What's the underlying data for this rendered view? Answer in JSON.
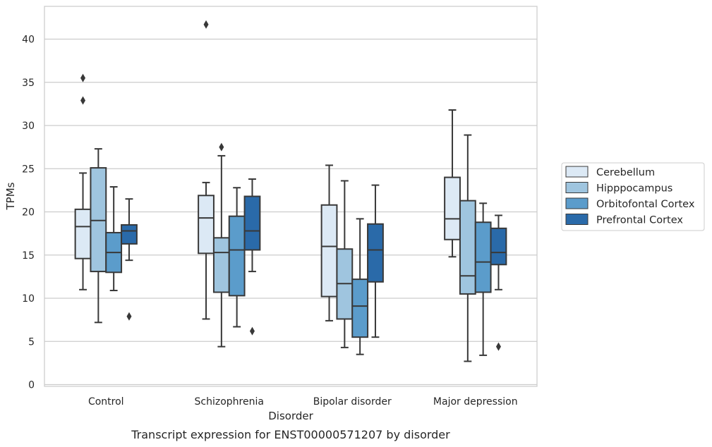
{
  "chart_data": {
    "type": "box",
    "xlabel": "Disorder",
    "ylabel": "TPMs",
    "caption": "Transcript expression for ENST00000571207 by disorder",
    "categories": [
      "Control",
      "Schizophrenia",
      "Bipolar disorder",
      "Major depression"
    ],
    "ylim": [
      -0.2,
      43.8
    ],
    "yticks": [
      0,
      5,
      10,
      15,
      20,
      25,
      30,
      35,
      40
    ],
    "grid": "horizontal",
    "legend_position": "right",
    "series": [
      {
        "name": "Cerebellum",
        "color": "#dce9f5",
        "boxes": [
          {
            "min": 11.0,
            "q1": 14.6,
            "median": 18.3,
            "q3": 20.3,
            "max": 24.5,
            "outliers": [
              32.9,
              35.5
            ]
          },
          {
            "min": 7.6,
            "q1": 15.2,
            "median": 19.3,
            "q3": 21.9,
            "max": 23.4,
            "outliers": [
              41.7
            ]
          },
          {
            "min": 7.4,
            "q1": 10.2,
            "median": 16.0,
            "q3": 20.8,
            "max": 25.4,
            "outliers": []
          },
          {
            "min": 14.8,
            "q1": 16.8,
            "median": 19.2,
            "q3": 24.0,
            "max": 31.8,
            "outliers": []
          }
        ]
      },
      {
        "name": "Hipppocampus",
        "color": "#9fc5df",
        "boxes": [
          {
            "min": 7.2,
            "q1": 13.1,
            "median": 19.0,
            "q3": 25.1,
            "max": 27.3,
            "outliers": []
          },
          {
            "min": 4.4,
            "q1": 10.7,
            "median": 15.3,
            "q3": 17.0,
            "max": 26.5,
            "outliers": [
              27.5
            ]
          },
          {
            "min": 4.3,
            "q1": 7.6,
            "median": 11.7,
            "q3": 15.7,
            "max": 23.6,
            "outliers": []
          },
          {
            "min": 2.7,
            "q1": 10.5,
            "median": 12.6,
            "q3": 21.3,
            "max": 28.9,
            "outliers": []
          }
        ]
      },
      {
        "name": "Orbitofontal Cortex",
        "color": "#5b9ccb",
        "boxes": [
          {
            "min": 10.9,
            "q1": 13.0,
            "median": 15.3,
            "q3": 17.6,
            "max": 22.9,
            "outliers": []
          },
          {
            "min": 6.7,
            "q1": 10.3,
            "median": 15.6,
            "q3": 19.5,
            "max": 22.8,
            "outliers": []
          },
          {
            "min": 3.5,
            "q1": 5.5,
            "median": 9.1,
            "q3": 12.2,
            "max": 19.2,
            "outliers": []
          },
          {
            "min": 3.4,
            "q1": 10.7,
            "median": 14.2,
            "q3": 18.8,
            "max": 21.0,
            "outliers": []
          }
        ]
      },
      {
        "name": "Prefrontal Cortex",
        "color": "#2a6aa9",
        "boxes": [
          {
            "min": 14.4,
            "q1": 16.3,
            "median": 17.8,
            "q3": 18.5,
            "max": 21.5,
            "outliers": [
              7.9
            ]
          },
          {
            "min": 13.1,
            "q1": 15.6,
            "median": 17.8,
            "q3": 21.8,
            "max": 23.8,
            "outliers": [
              6.2
            ]
          },
          {
            "min": 5.5,
            "q1": 11.9,
            "median": 15.6,
            "q3": 18.6,
            "max": 23.1,
            "outliers": []
          },
          {
            "min": 11.0,
            "q1": 13.9,
            "median": 15.3,
            "q3": 18.1,
            "max": 19.6,
            "outliers": [
              4.4
            ]
          }
        ]
      }
    ]
  }
}
